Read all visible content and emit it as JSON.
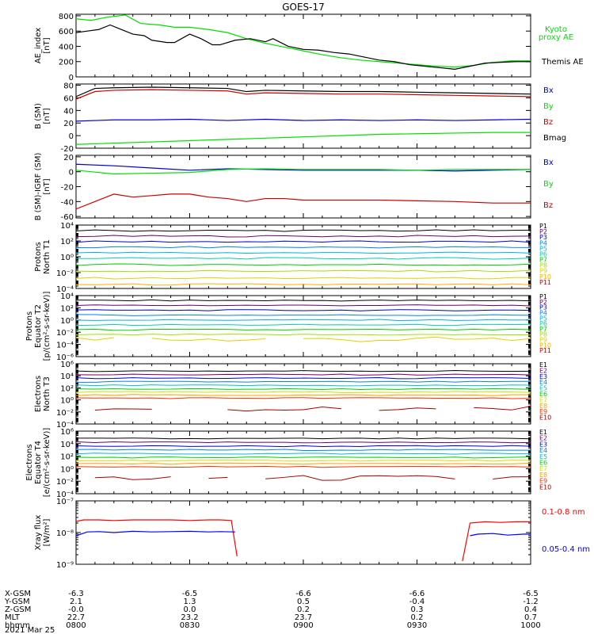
{
  "title": "GOES-17",
  "chart_data": [
    {
      "type": "line",
      "ylabel": "AE_index\n[nT]",
      "ylim": [
        0,
        820
      ],
      "yticks": [
        {
          "v": 0,
          "t": "0"
        },
        {
          "v": 200,
          "t": "200"
        },
        {
          "v": 400,
          "t": "400"
        },
        {
          "v": 600,
          "t": "600"
        },
        {
          "v": 800,
          "t": "800"
        }
      ],
      "ylog": false,
      "series": [
        {
          "name": "Kyoto\nproxy AE",
          "color": "#00e000",
          "x": [
            0,
            4,
            8,
            13,
            17,
            22,
            26,
            30,
            35,
            40,
            45,
            50,
            55,
            60,
            65,
            70,
            75,
            80,
            85,
            90,
            95,
            100,
            105,
            110,
            115,
            120
          ],
          "y": [
            760,
            740,
            780,
            810,
            700,
            680,
            650,
            650,
            620,
            580,
            500,
            440,
            390,
            340,
            290,
            250,
            220,
            200,
            180,
            160,
            140,
            130,
            150,
            190,
            210,
            210
          ]
        },
        {
          "name": "Themis AE",
          "color": "#000000",
          "x": [
            0,
            3,
            6,
            9,
            12,
            15,
            18,
            20,
            24,
            26,
            30,
            33,
            36,
            38,
            42,
            46,
            50,
            52,
            56,
            60,
            64,
            68,
            72,
            76,
            80,
            84,
            88,
            92,
            96,
            100,
            104,
            108,
            112,
            116,
            120
          ],
          "y": [
            580,
            600,
            620,
            680,
            620,
            560,
            540,
            480,
            450,
            450,
            560,
            500,
            420,
            420,
            480,
            500,
            460,
            500,
            400,
            360,
            350,
            320,
            300,
            260,
            220,
            200,
            160,
            140,
            120,
            100,
            140,
            180,
            190,
            200,
            200
          ]
        }
      ]
    },
    {
      "type": "line",
      "ylabel": "B (SM)\n[nT]",
      "ylim": [
        -20,
        82
      ],
      "yticks": [
        {
          "v": -20,
          "t": "-20"
        },
        {
          "v": 0,
          "t": "0"
        },
        {
          "v": 20,
          "t": "20"
        },
        {
          "v": 40,
          "t": "40"
        },
        {
          "v": 60,
          "t": "60"
        },
        {
          "v": 80,
          "t": "80"
        }
      ],
      "ylog": false,
      "series": [
        {
          "name": "Bx",
          "color": "#0000cc",
          "x": [
            0,
            10,
            20,
            30,
            40,
            50,
            60,
            70,
            80,
            90,
            100,
            110,
            120
          ],
          "y": [
            23,
            25,
            25,
            26,
            24,
            26,
            24,
            25,
            24,
            25,
            24,
            25,
            26
          ]
        },
        {
          "name": "By",
          "color": "#00e000",
          "x": [
            0,
            10,
            20,
            30,
            40,
            50,
            60,
            70,
            80,
            90,
            100,
            110,
            120
          ],
          "y": [
            -14,
            -12,
            -10,
            -8,
            -6,
            -4,
            -2,
            0,
            2,
            3,
            4,
            5,
            5
          ]
        },
        {
          "name": "Bz",
          "color": "#cc0000",
          "x": [
            0,
            5,
            10,
            20,
            30,
            40,
            45,
            50,
            60,
            70,
            80,
            90,
            100,
            110,
            120
          ],
          "y": [
            58,
            70,
            72,
            73,
            72,
            71,
            66,
            68,
            67,
            66,
            66,
            65,
            64,
            63,
            62
          ]
        },
        {
          "name": "Bmag",
          "color": "#000000",
          "x": [
            0,
            5,
            10,
            20,
            30,
            40,
            45,
            50,
            60,
            70,
            80,
            90,
            100,
            110,
            120
          ],
          "y": [
            62,
            75,
            76,
            77,
            76,
            75,
            70,
            72,
            71,
            70,
            70,
            69,
            68,
            67,
            66
          ]
        }
      ]
    },
    {
      "type": "line",
      "ylabel": "B (SM)-IGRF (SM)\n[nT]",
      "ylim": [
        -62,
        22
      ],
      "yticks": [
        {
          "v": -60,
          "t": "-60"
        },
        {
          "v": -40,
          "t": "-40"
        },
        {
          "v": -20,
          "t": "-20"
        },
        {
          "v": 0,
          "t": "0"
        },
        {
          "v": 20,
          "t": "20"
        }
      ],
      "ylog": false,
      "series": [
        {
          "name": "Bx",
          "color": "#0000cc",
          "x": [
            0,
            10,
            20,
            30,
            40,
            50,
            60,
            70,
            80,
            90,
            100,
            110,
            120
          ],
          "y": [
            10,
            8,
            5,
            2,
            4,
            3,
            2,
            2,
            2,
            2,
            1,
            2,
            3
          ]
        },
        {
          "name": "By",
          "color": "#00e000",
          "x": [
            0,
            10,
            20,
            30,
            40,
            50,
            60,
            70,
            80,
            90,
            100,
            110,
            120
          ],
          "y": [
            2,
            -3,
            -2,
            -1,
            3,
            4,
            3,
            3,
            3,
            2,
            3,
            3,
            3
          ]
        },
        {
          "name": "Bz",
          "color": "#cc0000",
          "x": [
            0,
            5,
            10,
            15,
            20,
            25,
            30,
            35,
            40,
            45,
            50,
            55,
            60,
            70,
            80,
            90,
            100,
            110,
            120
          ],
          "y": [
            -50,
            -40,
            -30,
            -34,
            -32,
            -30,
            -30,
            -34,
            -36,
            -40,
            -36,
            -36,
            -38,
            -38,
            -38,
            -39,
            -40,
            -42,
            -42
          ]
        }
      ]
    },
    {
      "type": "line",
      "ylabel": "Protons\nNorth T1",
      "ylim": [
        -4,
        4
      ],
      "ylog": true,
      "yticks": [
        {
          "v": -4,
          "t": "10⁻⁴"
        },
        {
          "v": -2,
          "t": "10⁻²"
        },
        {
          "v": 0,
          "t": "10⁰"
        },
        {
          "v": 2,
          "t": "10²"
        },
        {
          "v": 4,
          "t": "10⁴"
        }
      ],
      "series": [
        {
          "name": "P1",
          "color": "#000000",
          "level": 3.3
        },
        {
          "name": "P2",
          "color": "#6a006a",
          "level": 2.6
        },
        {
          "name": "P3",
          "color": "#0000cc",
          "level": 1.9
        },
        {
          "name": "P4",
          "color": "#0080ff",
          "level": 1.2
        },
        {
          "name": "P5",
          "color": "#00b0e0",
          "level": 0.5
        },
        {
          "name": "P6",
          "color": "#00d0b0",
          "level": -0.2
        },
        {
          "name": "P7",
          "color": "#00d000",
          "level": -1.0
        },
        {
          "name": "P8",
          "color": "#a0e000",
          "level": -1.8
        },
        {
          "name": "P9",
          "color": "#e0d000",
          "level": -2.7
        },
        {
          "name": "P10",
          "color": "#ffb000",
          "level": -3.5
        },
        {
          "name": "P11",
          "color": "#cc0000",
          "level": -5
        }
      ]
    },
    {
      "type": "line",
      "ylabel": "Protons\nEquator T2\n[p/(cm²-s-sr-keV)]",
      "ylim": [
        -6,
        4
      ],
      "ylog": true,
      "yticks": [
        {
          "v": -6,
          "t": "10⁻⁶"
        },
        {
          "v": -4,
          "t": "10⁻⁴"
        },
        {
          "v": -2,
          "t": "10⁻²"
        },
        {
          "v": 0,
          "t": "10⁰"
        },
        {
          "v": 2,
          "t": "10²"
        },
        {
          "v": 4,
          "t": "10⁴"
        }
      ],
      "series": [
        {
          "name": "P1",
          "color": "#000000",
          "level": 3.2
        },
        {
          "name": "P2",
          "color": "#6a006a",
          "level": 2.4
        },
        {
          "name": "P3",
          "color": "#0000cc",
          "level": 1.6
        },
        {
          "name": "P4",
          "color": "#0080ff",
          "level": 0.8
        },
        {
          "name": "P5",
          "color": "#00b0e0",
          "level": 0.0
        },
        {
          "name": "P6",
          "color": "#00d0b0",
          "level": -0.8
        },
        {
          "name": "P7",
          "color": "#00d000",
          "level": -1.6
        },
        {
          "name": "P8",
          "color": "#a0e000",
          "level": -2.4
        },
        {
          "name": "P9",
          "color": "#e0d000",
          "level": -3.2,
          "broken": true
        },
        {
          "name": "P10",
          "color": "#ffb000",
          "level": -8
        },
        {
          "name": "P11",
          "color": "#cc0000",
          "level": -8
        }
      ]
    },
    {
      "type": "line",
      "ylabel": "Electrons\nNorth T3",
      "ylim": [
        -4,
        6
      ],
      "ylog": true,
      "yticks": [
        {
          "v": -4,
          "t": "10⁻⁴"
        },
        {
          "v": -2,
          "t": "10⁻²"
        },
        {
          "v": 0,
          "t": "10⁰"
        },
        {
          "v": 2,
          "t": "10²"
        },
        {
          "v": 4,
          "t": "10⁴"
        },
        {
          "v": 6,
          "t": "10⁶"
        }
      ],
      "series": [
        {
          "name": "E1",
          "color": "#000000",
          "level": 4.8
        },
        {
          "name": "E2",
          "color": "#6a006a",
          "level": 4.2
        },
        {
          "name": "E3",
          "color": "#0000cc",
          "level": 3.6
        },
        {
          "name": "E4",
          "color": "#0080ff",
          "level": 3.0
        },
        {
          "name": "E5",
          "color": "#00c0d0",
          "level": 2.4
        },
        {
          "name": "E6",
          "color": "#00d000",
          "level": 1.8
        },
        {
          "name": "E7",
          "color": "#d0e000",
          "level": 1.3
        },
        {
          "name": "E8",
          "color": "#ffa000",
          "level": 0.8
        },
        {
          "name": "E9",
          "color": "#ff3000",
          "level": 0.3
        },
        {
          "name": "E10",
          "color": "#aa0000",
          "level": -1.5,
          "broken": true
        }
      ]
    },
    {
      "type": "line",
      "ylabel": "Electrons\nEquator T4\n[e/(cm²-s-sr-keV)]",
      "ylim": [
        -4,
        6
      ],
      "ylog": true,
      "yticks": [
        {
          "v": -4,
          "t": "10⁻⁴"
        },
        {
          "v": -2,
          "t": "10⁻²"
        },
        {
          "v": 0,
          "t": "10⁰"
        },
        {
          "v": 2,
          "t": "10²"
        },
        {
          "v": 4,
          "t": "10⁴"
        },
        {
          "v": 6,
          "t": "10⁶"
        }
      ],
      "series": [
        {
          "name": "E1",
          "color": "#000000",
          "level": 4.8
        },
        {
          "name": "E2",
          "color": "#6a006a",
          "level": 4.2
        },
        {
          "name": "E3",
          "color": "#0000cc",
          "level": 3.6
        },
        {
          "name": "E4",
          "color": "#0080ff",
          "level": 3.0
        },
        {
          "name": "E5",
          "color": "#00c0d0",
          "level": 2.4
        },
        {
          "name": "E6",
          "color": "#00d000",
          "level": 1.8
        },
        {
          "name": "E7",
          "color": "#d0e000",
          "level": 1.3
        },
        {
          "name": "E8",
          "color": "#ffa000",
          "level": 0.8
        },
        {
          "name": "E9",
          "color": "#ff3000",
          "level": 0.3
        },
        {
          "name": "E10",
          "color": "#aa0000",
          "level": -1.5,
          "broken": true
        }
      ]
    },
    {
      "type": "line",
      "ylabel": "Xray flux\n[W/m²]",
      "ylim": [
        -9,
        -7
      ],
      "ylog": true,
      "yticks": [
        {
          "v": -9,
          "t": "10⁻⁹"
        },
        {
          "v": -8,
          "t": "10⁻⁸"
        },
        {
          "v": -7,
          "t": "10⁻⁷"
        }
      ],
      "series": [
        {
          "name": "0.1-0.8 nm",
          "color": "#ff0000",
          "segments": [
            {
              "x": [
                0,
                2,
                6,
                10,
                15,
                20,
                25,
                30,
                35,
                38,
                41,
                42.5
              ],
              "y": [
                -7.65,
                -7.6,
                -7.6,
                -7.62,
                -7.6,
                -7.6,
                -7.6,
                -7.62,
                -7.6,
                -7.6,
                -7.62,
                -8.75
              ]
            },
            {
              "x": [
                102,
                104,
                108,
                112,
                116,
                120
              ],
              "y": [
                -8.9,
                -7.7,
                -7.66,
                -7.68,
                -7.66,
                -7.66
              ]
            }
          ]
        },
        {
          "name": "0.05-0.4 nm",
          "color": "#0000ff",
          "segments": [
            {
              "x": [
                0,
                3,
                6,
                10,
                15,
                20,
                25,
                30,
                35,
                38,
                42
              ],
              "y": [
                -8.1,
                -7.98,
                -7.97,
                -8.0,
                -7.96,
                -7.98,
                -7.97,
                -7.96,
                -7.98,
                -7.97,
                -7.98
              ]
            },
            {
              "x": [
                104,
                106,
                110,
                114,
                118,
                120
              ],
              "y": [
                -8.1,
                -8.05,
                -8.03,
                -8.08,
                -8.05,
                -8.05
              ]
            }
          ]
        }
      ]
    }
  ],
  "xaxis": {
    "xlim": [
      0,
      120
    ],
    "ticks_x": [
      0,
      30,
      60,
      90,
      120
    ],
    "row_labels": [
      "X-GSM",
      "Y-GSM",
      "Z-GSM",
      "MLT",
      "hhmm"
    ],
    "rows": [
      [
        "-6.3",
        "-6.5",
        "-6.6",
        "-6.6",
        "-6.5"
      ],
      [
        "2.1",
        "1.3",
        "0.5",
        "-0.4",
        "-1.2"
      ],
      [
        "-0.0",
        "0.0",
        "0.2",
        "0.3",
        "0.4"
      ],
      [
        "22.7",
        "23.2",
        "23.7",
        "0.2",
        "0.7"
      ],
      [
        "0800",
        "0830",
        "0900",
        "0930",
        "1000"
      ]
    ],
    "date": "2021 Mar 25"
  }
}
